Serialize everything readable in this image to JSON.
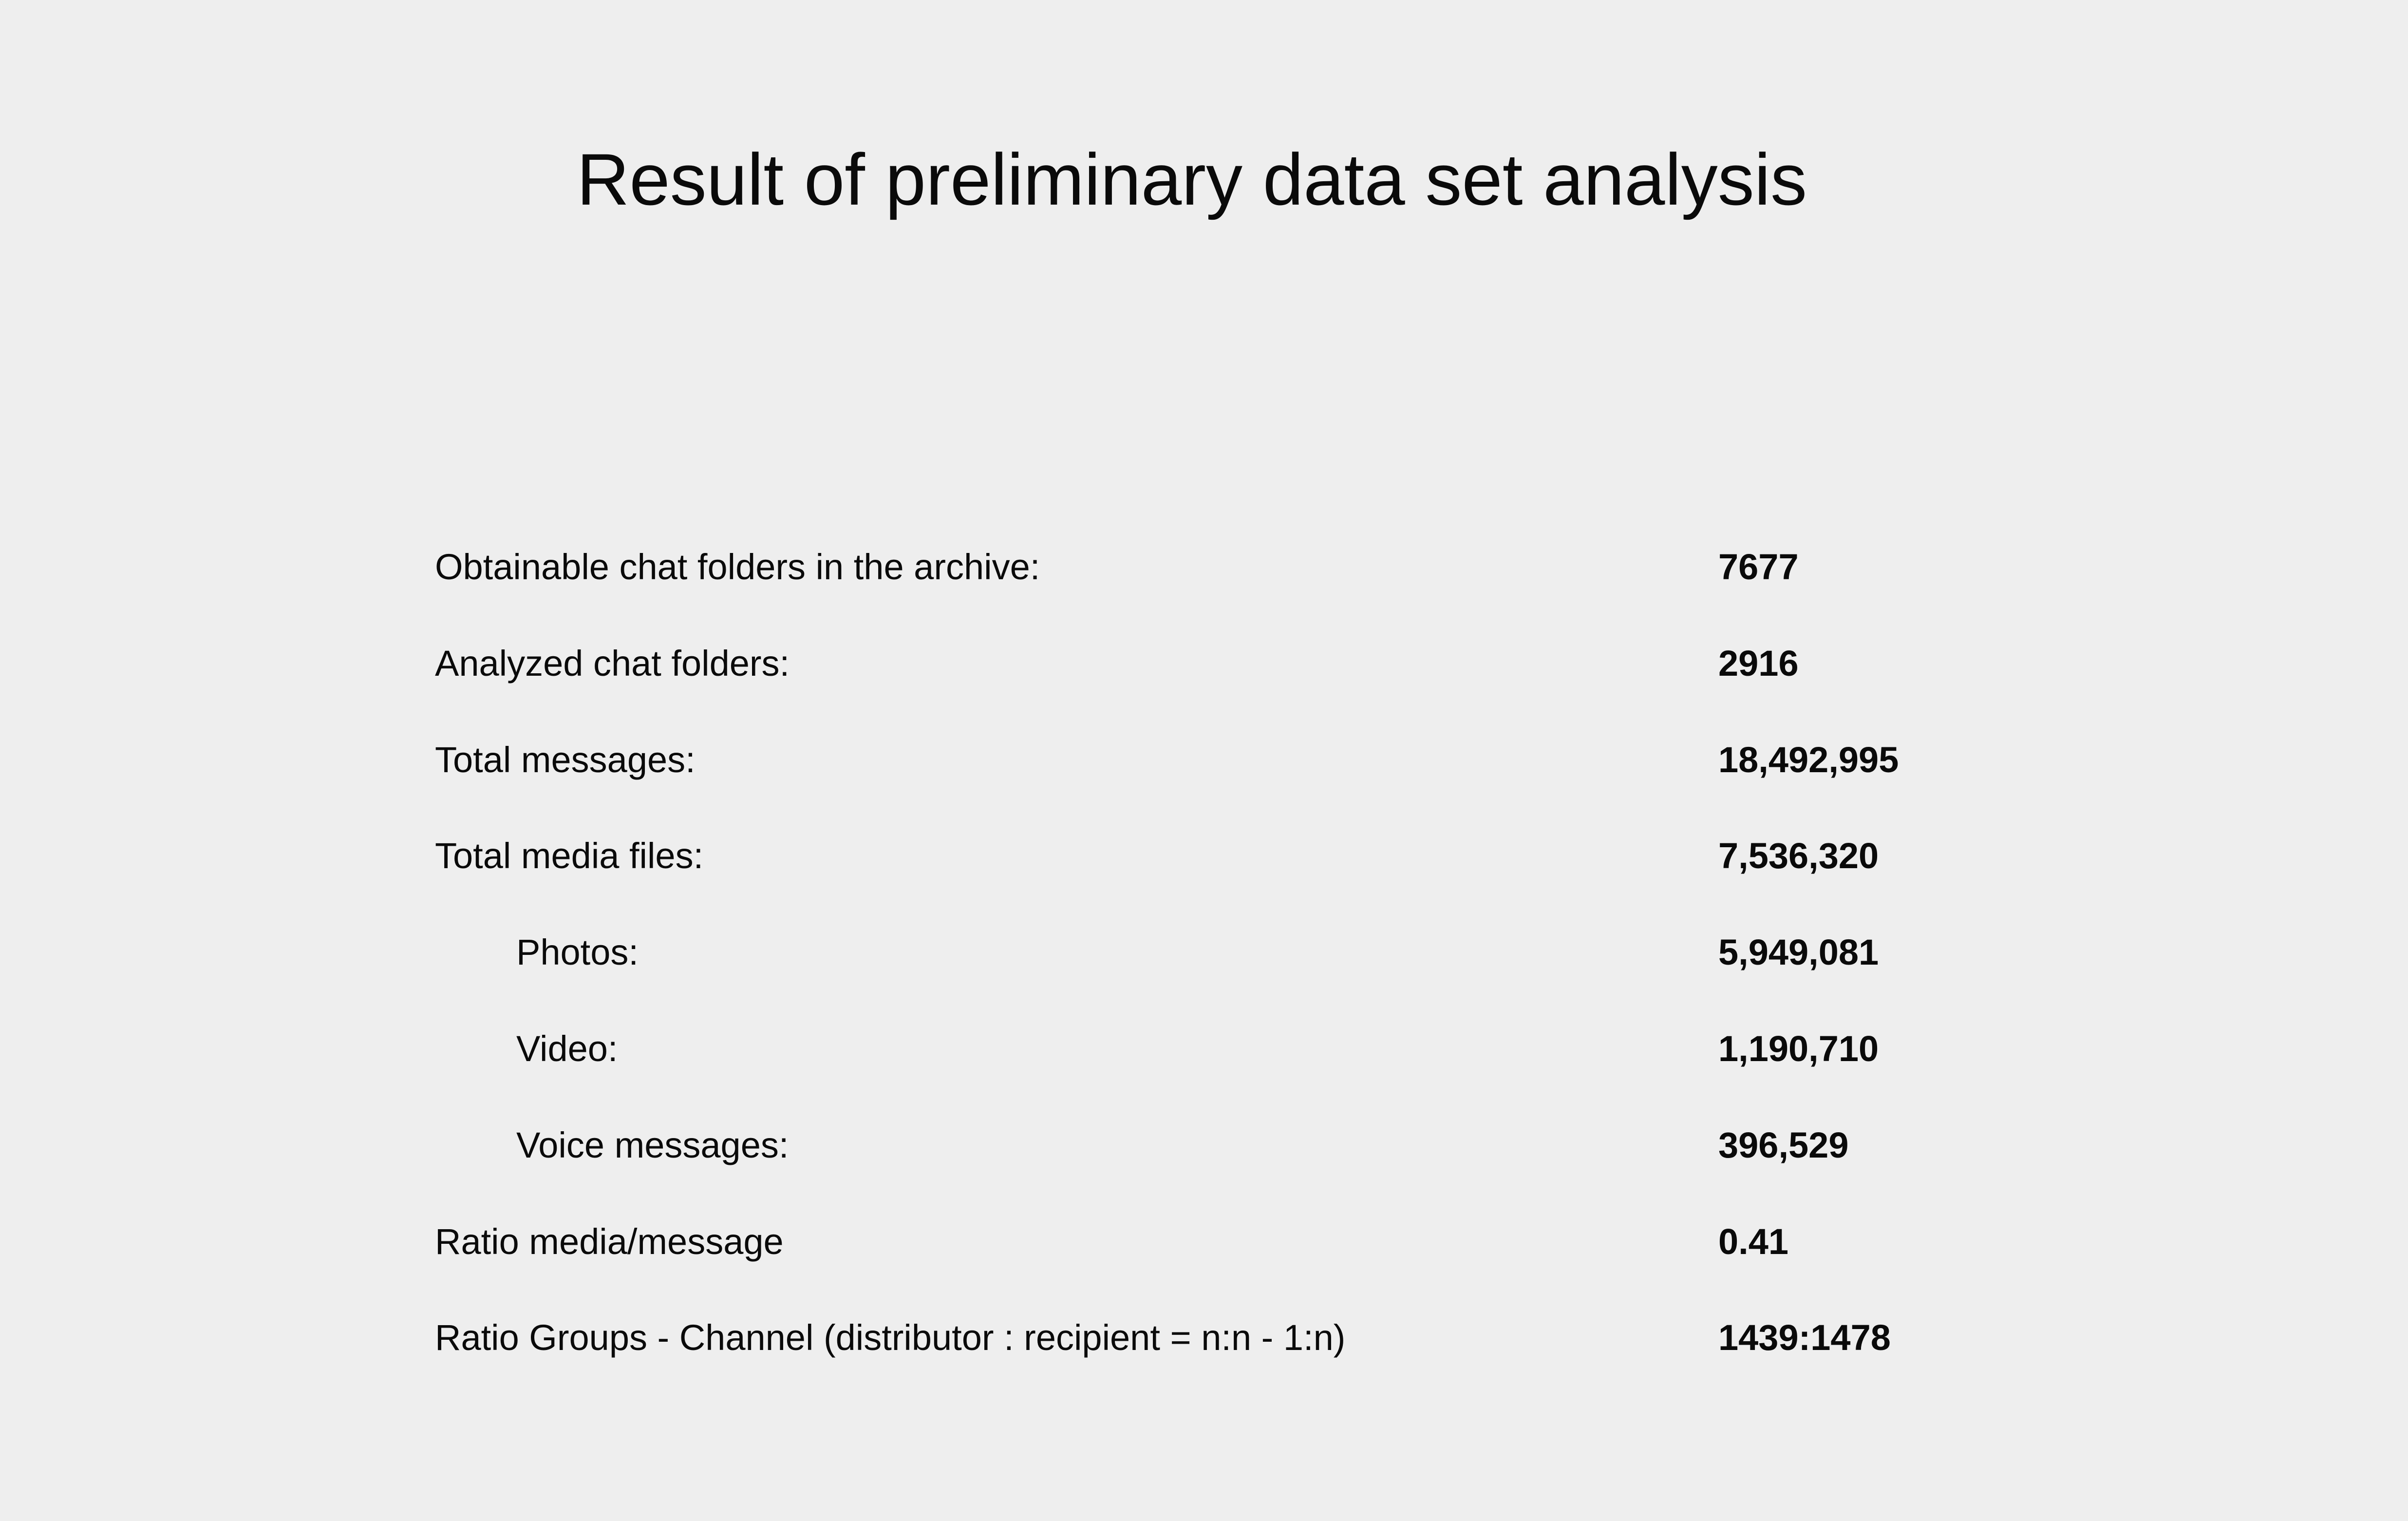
{
  "title": "Result of preliminary data set analysis",
  "rows": [
    {
      "label": "Obtainable chat folders in the archive:",
      "value": "7677"
    },
    {
      "label": "Analyzed chat folders:",
      "value": "2916"
    },
    {
      "label": "Total messages:",
      "value": "18,492,995"
    },
    {
      "label": "Total media files:",
      "value": "7,536,320"
    },
    {
      "label": "Photos:",
      "value": "5,949,081"
    },
    {
      "label": "Video:",
      "value": "1,190,710"
    },
    {
      "label": "Voice messages:",
      "value": "396,529"
    },
    {
      "label": "Ratio media/message",
      "value": "0.41"
    },
    {
      "label": "Ratio Groups - Channel (distributor : recipient = n:n - 1:n)",
      "value": "1439:1478"
    }
  ]
}
